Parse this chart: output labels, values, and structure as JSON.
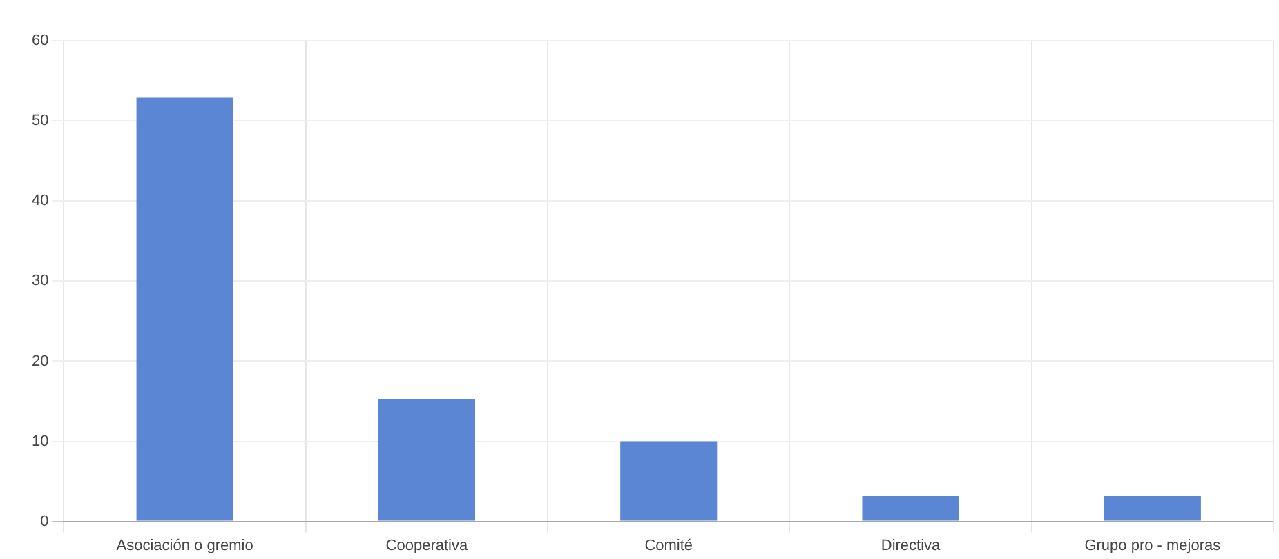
{
  "chart_data": {
    "type": "bar",
    "categories": [
      "Asociación o gremio",
      "Cooperativa",
      "Comité",
      "Directiva",
      "Grupo pro - mejoras"
    ],
    "values": [
      52.9,
      15.3,
      10.0,
      3.2,
      3.2
    ],
    "color": "#5a86d4",
    "ylim": [
      0,
      60
    ],
    "yticks": [
      0,
      10,
      20,
      30,
      40,
      50,
      60
    ],
    "grid": true,
    "legend": false
  }
}
